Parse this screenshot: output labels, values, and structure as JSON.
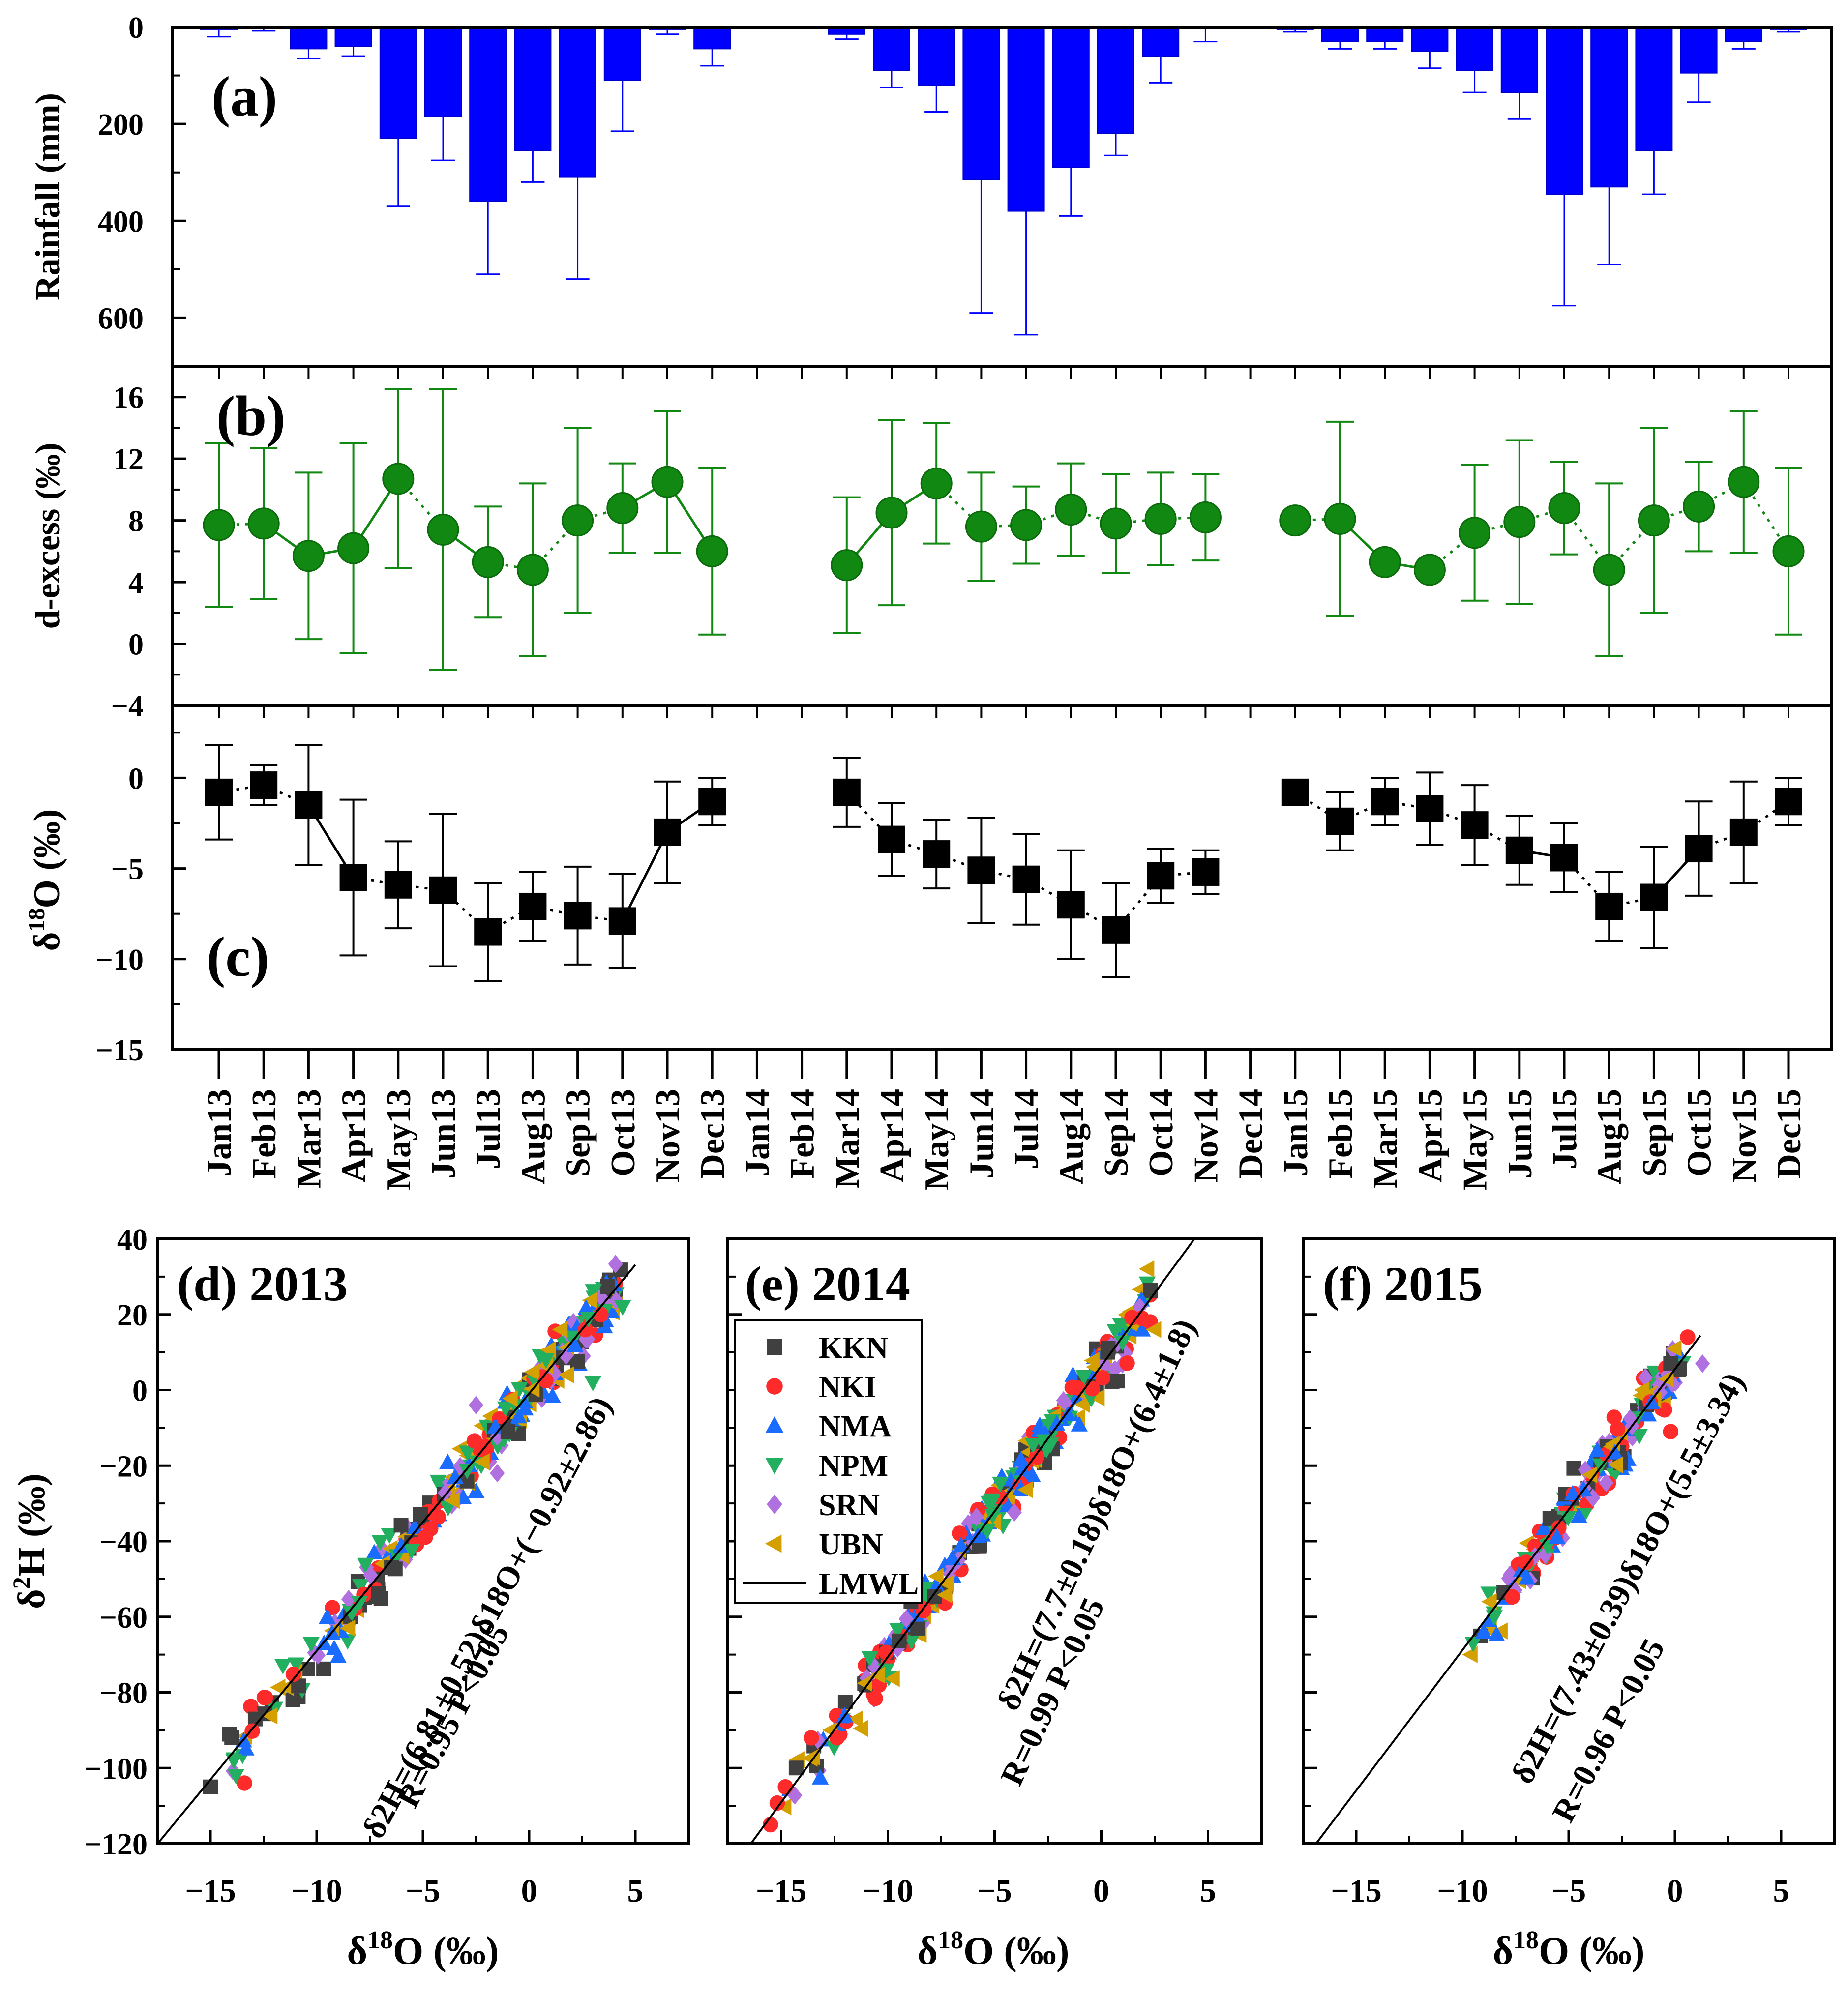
{
  "colors": {
    "rainfall": "#0000ff",
    "dexcess": "#118811",
    "d18o": "#000000",
    "KKN": "#404040",
    "NKI": "#ff2b2b",
    "NMA": "#1a6bff",
    "NPM": "#22b060",
    "SRN": "#b070e0",
    "UBN": "#d4a000",
    "LMWL": "#000000"
  },
  "months": [
    "Jan13",
    "Feb13",
    "Mar13",
    "Apr13",
    "May13",
    "Jun13",
    "Jul13",
    "Aug13",
    "Sep13",
    "Oct13",
    "Nov13",
    "Dec13",
    "Jan14",
    "Feb14",
    "Mar14",
    "Apr14",
    "May14",
    "Jun14",
    "Jul14",
    "Aug14",
    "Sep14",
    "Oct14",
    "Nov14",
    "Dec14",
    "Jan15",
    "Feb15",
    "Mar15",
    "Apr15",
    "May15",
    "Jun15",
    "Jul15",
    "Aug15",
    "Sep15",
    "Oct15",
    "Nov15",
    "Dec15"
  ],
  "chart_data": [
    {
      "id": "a",
      "type": "bar",
      "label": "(a)",
      "ylabel": "Rainfall (mm)",
      "ylim": [
        0,
        700
      ],
      "y_inverted": true,
      "yticks": [
        0,
        200,
        400,
        600
      ],
      "ytick_labels": [
        "0",
        "200",
        "400",
        "600"
      ],
      "values": [
        5,
        3,
        45,
        40,
        230,
        185,
        360,
        255,
        310,
        110,
        5,
        45,
        0,
        0,
        15,
        90,
        120,
        315,
        380,
        290,
        220,
        60,
        0,
        0,
        5,
        30,
        30,
        50,
        90,
        135,
        345,
        330,
        255,
        95,
        30,
        5
      ],
      "errors": [
        15,
        5,
        20,
        20,
        140,
        90,
        150,
        65,
        210,
        105,
        10,
        35,
        0,
        0,
        10,
        35,
        55,
        275,
        255,
        100,
        45,
        55,
        30,
        0,
        5,
        15,
        15,
        35,
        45,
        55,
        230,
        160,
        90,
        60,
        15,
        5
      ]
    },
    {
      "id": "b",
      "type": "line",
      "label": "(b)",
      "ylabel": "d-excess (‰)",
      "ylim": [
        -4,
        18
      ],
      "yticks": [
        -4,
        0,
        4,
        8,
        12,
        16
      ],
      "ytick_labels": [
        "−4",
        "0",
        "4",
        "8",
        "12",
        "16"
      ],
      "values": [
        7.7,
        7.8,
        5.7,
        6.2,
        10.7,
        7.4,
        5.3,
        4.8,
        8.0,
        8.8,
        10.5,
        6.0,
        null,
        null,
        5.1,
        8.5,
        10.4,
        7.6,
        7.7,
        8.7,
        7.8,
        8.1,
        8.2,
        null,
        8.0,
        8.1,
        5.3,
        4.8,
        7.2,
        7.9,
        8.8,
        4.8,
        8.0,
        8.9,
        10.5,
        6.0
      ],
      "errors": [
        5.3,
        4.9,
        5.4,
        6.8,
        5.8,
        9.1,
        3.6,
        5.6,
        6.0,
        2.9,
        4.6,
        5.4,
        null,
        null,
        4.4,
        6.0,
        3.9,
        3.5,
        2.5,
        3.0,
        3.2,
        3.0,
        2.8,
        null,
        0,
        6.3,
        0,
        0,
        4.4,
        5.3,
        3.0,
        5.6,
        6.0,
        2.9,
        4.6,
        5.4
      ],
      "solid_segments": [
        [
          1,
          2
        ],
        [
          2,
          3
        ],
        [
          3,
          4
        ],
        [
          5,
          6
        ],
        [
          9,
          10
        ],
        [
          10,
          11
        ],
        [
          14,
          15
        ],
        [
          15,
          16
        ],
        [
          25,
          26
        ],
        [
          26,
          27
        ]
      ]
    },
    {
      "id": "c",
      "type": "line",
      "label": "(c)",
      "ylabel": "δ18O (‰)",
      "ylim": [
        -15,
        4
      ],
      "yticks": [
        -15,
        -10,
        -5,
        0
      ],
      "ytick_labels": [
        "−15",
        "−10",
        "−5",
        "0"
      ],
      "values": [
        -0.8,
        -0.4,
        -1.5,
        -5.5,
        -5.9,
        -6.2,
        -8.5,
        -7.1,
        -7.6,
        -7.9,
        -3.0,
        -1.3,
        null,
        null,
        -0.8,
        -3.4,
        -4.2,
        -5.1,
        -5.6,
        -7.0,
        -8.4,
        -5.4,
        -5.2,
        null,
        -0.8,
        -2.4,
        -1.3,
        -1.7,
        -2.6,
        -4.0,
        -4.4,
        -7.1,
        -6.6,
        -3.9,
        -3.0,
        -1.3
      ],
      "errors": [
        2.6,
        1.1,
        3.3,
        4.3,
        2.4,
        4.2,
        2.7,
        1.9,
        2.7,
        2.6,
        2.8,
        1.3,
        null,
        null,
        1.9,
        2.0,
        1.9,
        2.9,
        2.5,
        3.0,
        2.6,
        1.5,
        1.2,
        null,
        0,
        1.6,
        1.3,
        2.0,
        2.2,
        1.9,
        1.9,
        1.9,
        2.8,
        2.6,
        2.8,
        1.3
      ],
      "solid_segments": [
        [
          2,
          3
        ],
        [
          9,
          10
        ],
        [
          10,
          11
        ],
        [
          29,
          30
        ],
        [
          32,
          33
        ]
      ]
    },
    {
      "id": "d",
      "type": "scatter",
      "title": "(d) 2013",
      "xlabel": "δ18O (‰)",
      "ylabel": "δ2H (‰)",
      "xlim": [
        -17.5,
        7.5
      ],
      "ylim": [
        -120,
        40
      ],
      "xticks": [
        -15,
        -10,
        -5,
        0,
        5
      ],
      "xtick_labels": [
        "−15",
        "−10",
        "−5",
        "0",
        "5"
      ],
      "yticks": [
        -120,
        -100,
        -80,
        -60,
        -40,
        -20,
        0,
        20,
        40
      ],
      "ytick_labels": [
        "−120",
        "−100",
        "−80",
        "−60",
        "−40",
        "−20",
        "0",
        "20",
        "40"
      ],
      "slope": 6.81,
      "intercept": -0.92,
      "line_x": [
        -17.5,
        5.0
      ],
      "equation_text": "δ2H=(6.81±0.52)δ18O+(−0.92±2.86)",
      "stats_text": "R=0.95 P<0.05",
      "x_range": [
        -15.0,
        4.5
      ],
      "n": 300,
      "seed": 13,
      "extra": [
        {
          "s": "NPM",
          "x": 4.4,
          "y": 22
        },
        {
          "s": "NPM",
          "x": 2.8,
          "y": 19
        },
        {
          "s": "NPM",
          "x": 3.0,
          "y": 2
        },
        {
          "s": "NPM",
          "x": 0.8,
          "y": 8
        },
        {
          "s": "UBN",
          "x": 1.5,
          "y": 16
        },
        {
          "s": "UBN",
          "x": 1.8,
          "y": 4
        },
        {
          "s": "KKN",
          "x": -1.0,
          "y": -11
        },
        {
          "s": "SRN",
          "x": -2.5,
          "y": -4
        },
        {
          "s": "SRN",
          "x": -1.5,
          "y": -22
        },
        {
          "s": "KKN",
          "x": -15.0,
          "y": -105
        },
        {
          "s": "KKN",
          "x": -14.0,
          "y": -92
        },
        {
          "s": "NKI",
          "x": -13.4,
          "y": -104
        },
        {
          "s": "NPM",
          "x": -13.8,
          "y": -102
        },
        {
          "s": "NPM",
          "x": -13.9,
          "y": -98
        }
      ]
    },
    {
      "id": "e",
      "type": "scatter",
      "title": "(e) 2014",
      "xlabel": "δ18O (‰)",
      "ylabel": "",
      "xlim": [
        -17.5,
        7.5
      ],
      "ylim": [
        -120,
        40
      ],
      "xticks": [
        -15,
        -10,
        -5,
        0,
        5
      ],
      "xtick_labels": [
        "−15",
        "−10",
        "−5",
        "0",
        "5"
      ],
      "yticks": [
        -120,
        -100,
        -80,
        -60,
        -40,
        -20,
        0,
        20,
        40
      ],
      "slope": 7.7,
      "intercept": 6.4,
      "line_x": [
        -16.5,
        4.5
      ],
      "equation_text": "δ2H=(7.7±0.18)δ18O+(6.4±1.8)",
      "stats_text": "R=0.99 P<0.05",
      "x_range": [
        -15.5,
        2.5
      ],
      "n": 320,
      "seed": 14,
      "extra": [
        {
          "s": "NKI",
          "x": -15.5,
          "y": -115
        },
        {
          "s": "NKI",
          "x": -14.8,
          "y": -105
        },
        {
          "s": "KKN",
          "x": -14.3,
          "y": -100
        },
        {
          "s": "NKI",
          "x": 1.9,
          "y": 19
        },
        {
          "s": "NKI",
          "x": 2.3,
          "y": 18
        },
        {
          "s": "UBN",
          "x": 2.5,
          "y": 16
        },
        {
          "s": "KKN",
          "x": 0.3,
          "y": 10
        }
      ]
    },
    {
      "id": "f",
      "type": "scatter",
      "title": "(f) 2015",
      "xlabel": "δ18O (‰)",
      "ylabel": "",
      "xlim": [
        -17.5,
        7.5
      ],
      "ylim": [
        -120,
        40
      ],
      "xticks": [
        -15,
        -10,
        -5,
        0,
        5
      ],
      "xtick_labels": [
        "−15",
        "−10",
        "−5",
        "0",
        "5"
      ],
      "yticks": [
        -120,
        -100,
        -80,
        -60,
        -40,
        -20,
        0,
        20,
        40
      ],
      "slope": 7.43,
      "intercept": 5.5,
      "line_x": [
        -16.9,
        1.2
      ],
      "equation_text": "δ2H=(7.43±0.39)δ18O+(5.5±3.34)",
      "stats_text": "R=0.96 P<0.05",
      "x_range": [
        -9.5,
        0.5
      ],
      "n": 200,
      "seed": 15,
      "extra": [
        {
          "s": "UBN",
          "x": -9.6,
          "y": -70
        },
        {
          "s": "NPM",
          "x": -9.5,
          "y": -67
        },
        {
          "s": "NMA",
          "x": -9.0,
          "y": -64
        },
        {
          "s": "NPM",
          "x": -8.5,
          "y": -60
        },
        {
          "s": "UBN",
          "x": -8.7,
          "y": -56
        },
        {
          "s": "NKI",
          "x": 0.6,
          "y": 14
        },
        {
          "s": "SRN",
          "x": 1.3,
          "y": 7
        },
        {
          "s": "KKN",
          "x": -0.2,
          "y": 7
        },
        {
          "s": "NKI",
          "x": -0.2,
          "y": -11
        },
        {
          "s": "UBN",
          "x": 0.0,
          "y": 11
        }
      ]
    }
  ],
  "legend": {
    "entries": [
      {
        "name": "KKN",
        "marker": "square"
      },
      {
        "name": "NKI",
        "marker": "circle"
      },
      {
        "name": "NMA",
        "marker": "triangle-up"
      },
      {
        "name": "NPM",
        "marker": "triangle-down"
      },
      {
        "name": "SRN",
        "marker": "diamond"
      },
      {
        "name": "UBN",
        "marker": "triangle-left"
      },
      {
        "name": "LMWL",
        "marker": "line"
      }
    ]
  }
}
